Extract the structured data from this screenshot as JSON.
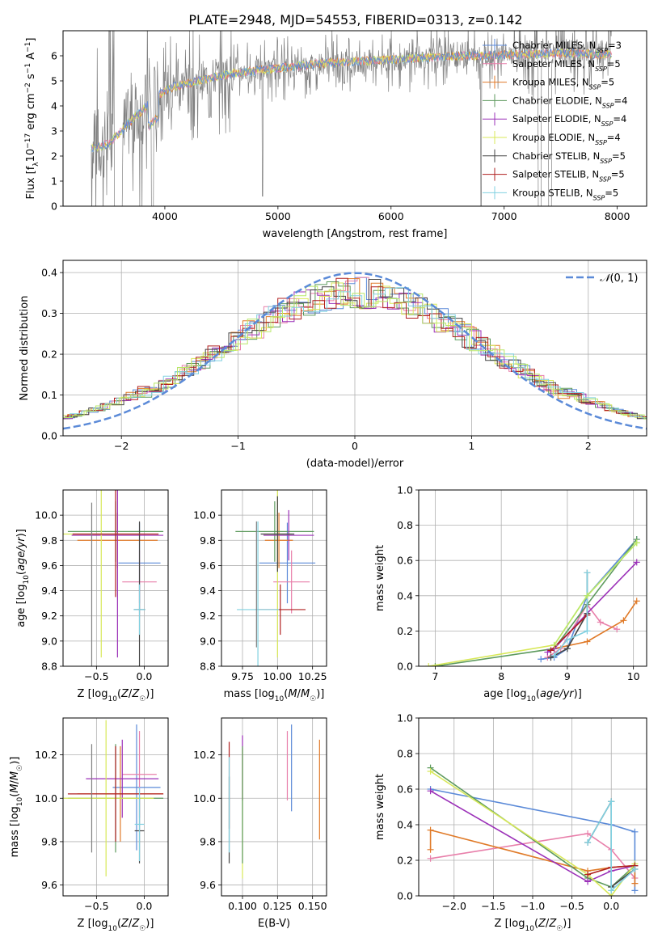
{
  "title": "PLATE=2948, MJD=54553, FIBERID=0313, z=0.142",
  "colors": {
    "chabrier_miles": "#5b8ad8",
    "salpeter_miles": "#e87faa",
    "kroupa_miles": "#e07a28",
    "chabrier_elodie": "#5d9a5d",
    "salpeter_elodie": "#9b30b8",
    "kroupa_elodie": "#d8e858",
    "chabrier_stelib": "#444444",
    "salpeter_stelib": "#b02020",
    "kroupa_stelib": "#80d0e0",
    "data": "#808080",
    "light_green": "#b8e868"
  },
  "chart_data": [
    {
      "id": "spectrum",
      "type": "line",
      "xlabel": "wavelength [Angstrom, rest frame]",
      "ylabel": "Flux [f_λ 10^-17 erg cm^-2 s^-1 A^-1]",
      "xlim": [
        3100,
        8260
      ],
      "ylim": [
        0,
        7
      ],
      "xticks": [
        4000,
        5000,
        6000,
        7000,
        8000
      ],
      "yticks": [
        0,
        1,
        2,
        3,
        4,
        5,
        6
      ],
      "legend_position": "top-right",
      "legend": [
        {
          "label": "Chabrier MILES, N",
          "sub": "SSP",
          "tail": "=3",
          "color": "chabrier_miles"
        },
        {
          "label": "Salpeter MILES, N",
          "sub": "SSP",
          "tail": "=5",
          "color": "salpeter_miles"
        },
        {
          "label": "Kroupa MILES, N",
          "sub": "SSP",
          "tail": "=5",
          "color": "kroupa_miles"
        },
        {
          "label": "Chabrier ELODIE, N",
          "sub": "SSP",
          "tail": "=4",
          "color": "chabrier_elodie"
        },
        {
          "label": "Salpeter ELODIE, N",
          "sub": "SSP",
          "tail": "=4",
          "color": "salpeter_elodie"
        },
        {
          "label": "Kroupa ELODIE, N",
          "sub": "SSP",
          "tail": "=4",
          "color": "kroupa_elodie"
        },
        {
          "label": "Chabrier STELIB, N",
          "sub": "SSP",
          "tail": "=5",
          "color": "chabrier_stelib"
        },
        {
          "label": "Salpeter STELIB, N",
          "sub": "SSP",
          "tail": "=5",
          "color": "salpeter_stelib"
        },
        {
          "label": "Kroupa STELIB, N",
          "sub": "SSP",
          "tail": "=5",
          "color": "kroupa_stelib"
        }
      ],
      "continuum": {
        "x": [
          3350,
          3500,
          3600,
          3700,
          3800,
          3900,
          4000,
          4100,
          4200,
          4400,
          4600,
          4800,
          5000,
          5200,
          5400,
          5600,
          5800,
          6000,
          6200,
          6400,
          6600,
          6800,
          7000,
          7200,
          7400,
          7600,
          7800,
          7950
        ],
        "y": [
          2.3,
          2.5,
          2.9,
          3.4,
          3.8,
          4.3,
          4.6,
          4.8,
          4.9,
          5.1,
          5.3,
          5.4,
          5.5,
          5.6,
          5.7,
          5.75,
          5.8,
          5.85,
          5.9,
          5.95,
          6.0,
          6.0,
          6.05,
          6.05,
          6.1,
          6.1,
          6.05,
          6.05
        ]
      }
    },
    {
      "id": "residuals",
      "type": "bar",
      "xlabel": "(data-model)/error",
      "ylabel": "Normed distribution",
      "xlim": [
        -2.5,
        2.5
      ],
      "ylim": [
        0,
        0.43
      ],
      "xticks": [
        -2,
        -1,
        0,
        1,
        2
      ],
      "yticks": [
        0.0,
        0.1,
        0.2,
        0.3,
        0.4
      ],
      "legend": [
        {
          "label": "𝒩(0, 1)",
          "color": "chabrier_miles"
        }
      ],
      "legend_position": "top-right",
      "grid": true
    },
    {
      "id": "age_vs_Z",
      "type": "scatter",
      "xlabel": "Z [log10(Z/Z☉)]",
      "ylabel": "age  [log10(age/yr)]",
      "xlim": [
        -0.85,
        0.25
      ],
      "ylim": [
        8.8,
        10.2
      ],
      "xticks": [
        -0.5,
        0.0
      ],
      "yticks": [
        8.8,
        9.0,
        9.2,
        9.4,
        9.6,
        9.8,
        10.0
      ],
      "grid": true,
      "points": [
        {
          "color": "chabrier_miles",
          "x": -0.05,
          "xerr": 0.22,
          "y": 9.62,
          "yerr": 0.32
        },
        {
          "color": "salpeter_miles",
          "x": -0.05,
          "xerr": 0.18,
          "y": 9.47,
          "yerr": 0.25
        },
        {
          "color": "kroupa_miles",
          "x": -0.28,
          "xerr": 0.42,
          "y": 9.8,
          "yerr": 0.22
        },
        {
          "color": "chabrier_elodie",
          "x": -0.3,
          "xerr": 0.5,
          "y": 9.87,
          "yerr": 0.24
        },
        {
          "color": "salpeter_elodie",
          "x": -0.28,
          "xerr": 0.48,
          "y": 9.84,
          "yerr": 0.97
        },
        {
          "color": "kroupa_elodie",
          "x": -0.45,
          "xerr": 0.4,
          "y": 9.85,
          "yerr": 0.98
        },
        {
          "color": "chabrier_stelib",
          "x": -0.05,
          "xerr": 0.06,
          "y": 9.25,
          "yerr": 0.7
        },
        {
          "color": "salpeter_stelib",
          "x": -0.3,
          "xerr": 0.45,
          "y": 9.85,
          "yerr": 0.5
        },
        {
          "color": "kroupa_stelib",
          "x": -0.05,
          "xerr": 0.06,
          "y": 9.25,
          "yerr": 0.2
        },
        {
          "color": "data",
          "x": -0.55,
          "xerr": 0.0,
          "y": 9.4,
          "yerr": 0.7
        }
      ]
    },
    {
      "id": "age_vs_mass",
      "type": "scatter",
      "xlabel": "mass [log10(M/M☉)]",
      "ylabel": "",
      "xlim": [
        9.6,
        10.35
      ],
      "ylim": [
        8.8,
        10.2
      ],
      "xticks": [
        9.75,
        10.0,
        10.25
      ],
      "xticklabels": [
        "9.75",
        "10.00",
        "10.25"
      ],
      "yticks": [
        8.8,
        9.0,
        9.2,
        9.4,
        9.6,
        9.8,
        10.0
      ],
      "grid": true,
      "points": [
        {
          "color": "chabrier_miles",
          "x": 10.07,
          "xerr": 0.2,
          "y": 9.62,
          "yerr": 0.32
        },
        {
          "color": "salpeter_miles",
          "x": 10.1,
          "xerr": 0.13,
          "y": 9.47,
          "yerr": 0.25
        },
        {
          "color": "kroupa_miles",
          "x": 10.01,
          "xerr": 0.1,
          "y": 9.8,
          "yerr": 0.22
        },
        {
          "color": "chabrier_elodie",
          "x": 9.98,
          "xerr": 0.28,
          "y": 9.87,
          "yerr": 0.24
        },
        {
          "color": "salpeter_elodie",
          "x": 10.08,
          "xerr": 0.18,
          "y": 9.84,
          "yerr": 0.2
        },
        {
          "color": "kroupa_elodie",
          "x": 10.0,
          "xerr": 0.1,
          "y": 9.85,
          "yerr": 0.98
        },
        {
          "color": "chabrier_stelib",
          "x": 10.0,
          "xerr": 0.12,
          "y": 9.85,
          "yerr": 0.3
        },
        {
          "color": "salpeter_stelib",
          "x": 10.02,
          "xerr": 0.18,
          "y": 9.25,
          "yerr": 0.2
        },
        {
          "color": "kroupa_stelib",
          "x": 9.86,
          "xerr": 0.15,
          "y": 9.25,
          "yerr": 0.7
        },
        {
          "color": "data",
          "x": 9.85,
          "xerr": 0.0,
          "y": 9.45,
          "yerr": 0.5
        }
      ]
    },
    {
      "id": "massweight_vs_age",
      "type": "line",
      "xlabel": "age  [log10(age/yr)]",
      "ylabel": "mass weight",
      "xlim": [
        6.75,
        10.2
      ],
      "ylim": [
        0,
        1.0
      ],
      "xticks": [
        7,
        8,
        9,
        10
      ],
      "yticks": [
        0.0,
        0.2,
        0.4,
        0.6,
        0.8,
        1.0
      ],
      "grid": true,
      "series": [
        {
          "color": "chabrier_miles",
          "x": [
            8.6,
            8.8,
            9.0,
            9.3,
            10.05
          ],
          "y": [
            0.04,
            0.05,
            0.1,
            0.4,
            0.72
          ]
        },
        {
          "color": "salpeter_miles",
          "x": [
            8.7,
            8.9,
            9.3,
            9.5,
            9.75
          ],
          "y": [
            0.05,
            0.1,
            0.35,
            0.25,
            0.21
          ]
        },
        {
          "color": "kroupa_miles",
          "x": [
            8.8,
            9.3,
            9.85,
            10.05
          ],
          "y": [
            0.1,
            0.14,
            0.26,
            0.37
          ]
        },
        {
          "color": "chabrier_elodie",
          "x": [
            7.0,
            8.8,
            9.3,
            10.05
          ],
          "y": [
            0.0,
            0.1,
            0.35,
            0.72
          ]
        },
        {
          "color": "salpeter_elodie",
          "x": [
            8.7,
            8.8,
            9.3,
            10.05
          ],
          "y": [
            0.08,
            0.1,
            0.3,
            0.59
          ]
        },
        {
          "color": "kroupa_elodie",
          "x": [
            6.9,
            8.8,
            9.3,
            10.05
          ],
          "y": [
            0.0,
            0.12,
            0.4,
            0.7
          ]
        },
        {
          "color": "chabrier_stelib",
          "x": [
            8.75,
            9.0,
            9.3,
            9.3
          ],
          "y": [
            0.05,
            0.1,
            0.3,
            0.53
          ]
        },
        {
          "color": "salpeter_stelib",
          "x": [
            8.75,
            9.3
          ],
          "y": [
            0.09,
            0.29
          ]
        },
        {
          "color": "kroupa_stelib",
          "x": [
            8.8,
            9.0,
            9.3,
            9.3
          ],
          "y": [
            0.06,
            0.15,
            0.2,
            0.53
          ]
        },
        {
          "color": "light_green",
          "x": [
            8.8,
            9.3,
            10.05
          ],
          "y": [
            0.12,
            0.4,
            0.7
          ]
        }
      ]
    },
    {
      "id": "mass_vs_Z",
      "type": "scatter",
      "xlabel": "Z [log10(Z/Z☉)]",
      "ylabel": "mass [log10(M/M☉)]",
      "xlim": [
        -0.85,
        0.25
      ],
      "ylim": [
        9.55,
        10.37
      ],
      "xticks": [
        -0.5,
        0.0
      ],
      "yticks": [
        9.6,
        9.8,
        10.0,
        10.2
      ],
      "grid": true,
      "points": [
        {
          "color": "chabrier_miles",
          "x": -0.08,
          "xerr": 0.25,
          "y": 10.05,
          "yerr": 0.29
        },
        {
          "color": "salpeter_miles",
          "x": -0.05,
          "xerr": 0.18,
          "y": 10.11,
          "yerr": 0.2
        },
        {
          "color": "kroupa_miles",
          "x": -0.25,
          "xerr": 0.45,
          "y": 10.02,
          "yerr": 0.22
        },
        {
          "color": "chabrier_elodie",
          "x": -0.3,
          "xerr": 0.5,
          "y": 10.0,
          "yerr": 0.25
        },
        {
          "color": "salpeter_elodie",
          "x": -0.23,
          "xerr": 0.38,
          "y": 10.09,
          "yerr": 0.18
        },
        {
          "color": "kroupa_elodie",
          "x": -0.4,
          "xerr": 0.5,
          "y": 10.0,
          "yerr": 0.36
        },
        {
          "color": "chabrier_stelib",
          "x": -0.05,
          "xerr": 0.05,
          "y": 9.85,
          "yerr": 0.15
        },
        {
          "color": "salpeter_stelib",
          "x": -0.3,
          "xerr": 0.5,
          "y": 10.02,
          "yerr": 0.22
        },
        {
          "color": "kroupa_stelib",
          "x": -0.05,
          "xerr": 0.05,
          "y": 9.88,
          "yerr": 0.17
        },
        {
          "color": "data",
          "x": -0.55,
          "xerr": 0.0,
          "y": 10.0,
          "yerr": 0.25
        }
      ]
    },
    {
      "id": "mass_vs_ebv",
      "type": "scatter",
      "xlabel": "E(B-V)",
      "ylabel": "",
      "xlim": [
        0.085,
        0.16
      ],
      "ylim": [
        9.55,
        10.37
      ],
      "xticks": [
        0.1,
        0.125,
        0.15
      ],
      "xticklabels": [
        "0.100",
        "0.125",
        "0.150"
      ],
      "yticks": [
        9.6,
        9.8,
        10.0,
        10.2
      ],
      "grid": true,
      "points": [
        {
          "color": "chabrier_miles",
          "x": 0.135,
          "y": 10.14,
          "yerr": 0.2
        },
        {
          "color": "salpeter_miles",
          "x": 0.132,
          "y": 10.15,
          "yerr": 0.16
        },
        {
          "color": "kroupa_miles",
          "x": 0.155,
          "y": 10.04,
          "yerr": 0.23
        },
        {
          "color": "salpeter_stelib",
          "x": 0.0905,
          "y": 10.06,
          "yerr": 0.2
        },
        {
          "color": "salpeter_elodie",
          "x": 0.1,
          "y": 10.14,
          "yerr": 0.15
        },
        {
          "color": "kroupa_elodie",
          "x": 0.1,
          "y": 9.93,
          "yerr": 0.3
        },
        {
          "color": "chabrier_stelib",
          "x": 0.0905,
          "y": 9.9,
          "yerr": 0.2
        },
        {
          "color": "kroupa_stelib",
          "x": 0.0905,
          "y": 9.97,
          "yerr": 0.22
        },
        {
          "color": "chabrier_elodie",
          "x": 0.1,
          "y": 9.97,
          "yerr": 0.27
        }
      ]
    },
    {
      "id": "massweight_vs_Z",
      "type": "line",
      "xlabel": "Z [log10(Z/Z☉)]",
      "ylabel": "mass weight",
      "xlim": [
        -2.45,
        0.45
      ],
      "ylim": [
        0,
        1.0
      ],
      "xticks": [
        -2.0,
        -1.5,
        -1.0,
        -0.5,
        0.0
      ],
      "yticks": [
        0.0,
        0.2,
        0.4,
        0.6,
        0.8,
        1.0
      ],
      "grid": true,
      "series": [
        {
          "color": "chabrier_miles",
          "x": [
            -2.3,
            0.0,
            0.3,
            0.3
          ],
          "y": [
            0.6,
            0.4,
            0.36,
            0.03
          ]
        },
        {
          "color": "salpeter_miles",
          "x": [
            -2.3,
            -0.3,
            0.0,
            0.3
          ],
          "y": [
            0.21,
            0.35,
            0.26,
            0.1
          ]
        },
        {
          "color": "kroupa_miles",
          "x": [
            -2.3,
            -2.3,
            -0.3,
            0.0,
            0.3,
            0.3
          ],
          "y": [
            0.26,
            0.37,
            0.14,
            0.16,
            0.17,
            0.07
          ]
        },
        {
          "color": "chabrier_elodie",
          "x": [
            -2.3,
            -0.3,
            0.0,
            0.3
          ],
          "y": [
            0.72,
            0.1,
            0.05,
            0.17
          ]
        },
        {
          "color": "salpeter_elodie",
          "x": [
            -2.3,
            -0.3,
            0.0,
            0.3
          ],
          "y": [
            0.59,
            0.08,
            0.14,
            0.17
          ]
        },
        {
          "color": "kroupa_elodie",
          "x": [
            -2.3,
            -0.3,
            0.0,
            0.3
          ],
          "y": [
            0.7,
            0.12,
            0.0,
            0.18
          ]
        },
        {
          "color": "chabrier_stelib",
          "x": [
            -0.3,
            0.0,
            0.0,
            0.3
          ],
          "y": [
            0.3,
            0.53,
            0.05,
            0.15
          ]
        },
        {
          "color": "salpeter_stelib",
          "x": [
            -0.3,
            0.0,
            0.3
          ],
          "y": [
            0.12,
            0.16,
            0.17
          ]
        },
        {
          "color": "kroupa_stelib",
          "x": [
            -0.3,
            0.0,
            0.0,
            0.3
          ],
          "y": [
            0.3,
            0.53,
            0.03,
            0.15
          ]
        }
      ]
    }
  ]
}
